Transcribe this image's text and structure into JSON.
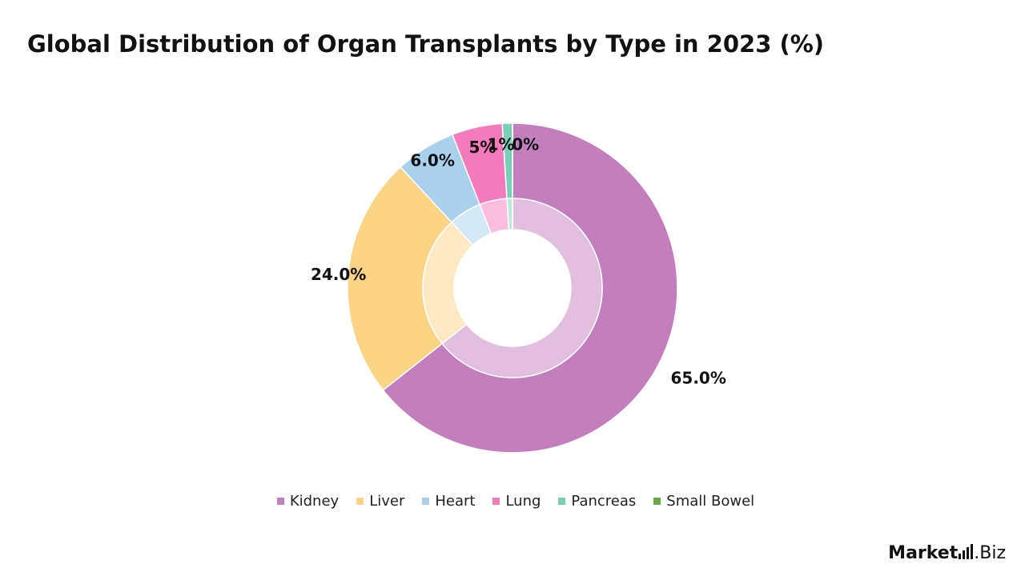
{
  "chart_data": {
    "type": "pie",
    "title": "Global Distribution of Organ Transplants by Type in 2023 (%)",
    "categories": [
      "Kidney",
      "Liver",
      "Heart",
      "Lung",
      "Pancreas",
      "Small Bowel"
    ],
    "values": [
      65.0,
      24.0,
      6.0,
      5.0,
      1.0,
      0.0
    ],
    "data_labels": [
      "65.0%",
      "24.0%",
      "6.0%",
      "5%",
      "1%",
      "0%"
    ],
    "colors": [
      "#c47ebe",
      "#fdd385",
      "#a9d0ec",
      "#f57abb",
      "#78d0b9",
      "#6aaa44"
    ],
    "donut": true,
    "legend_position": "bottom"
  },
  "brand": {
    "name_prefix": "Market",
    "name_suffix": ".Biz"
  }
}
